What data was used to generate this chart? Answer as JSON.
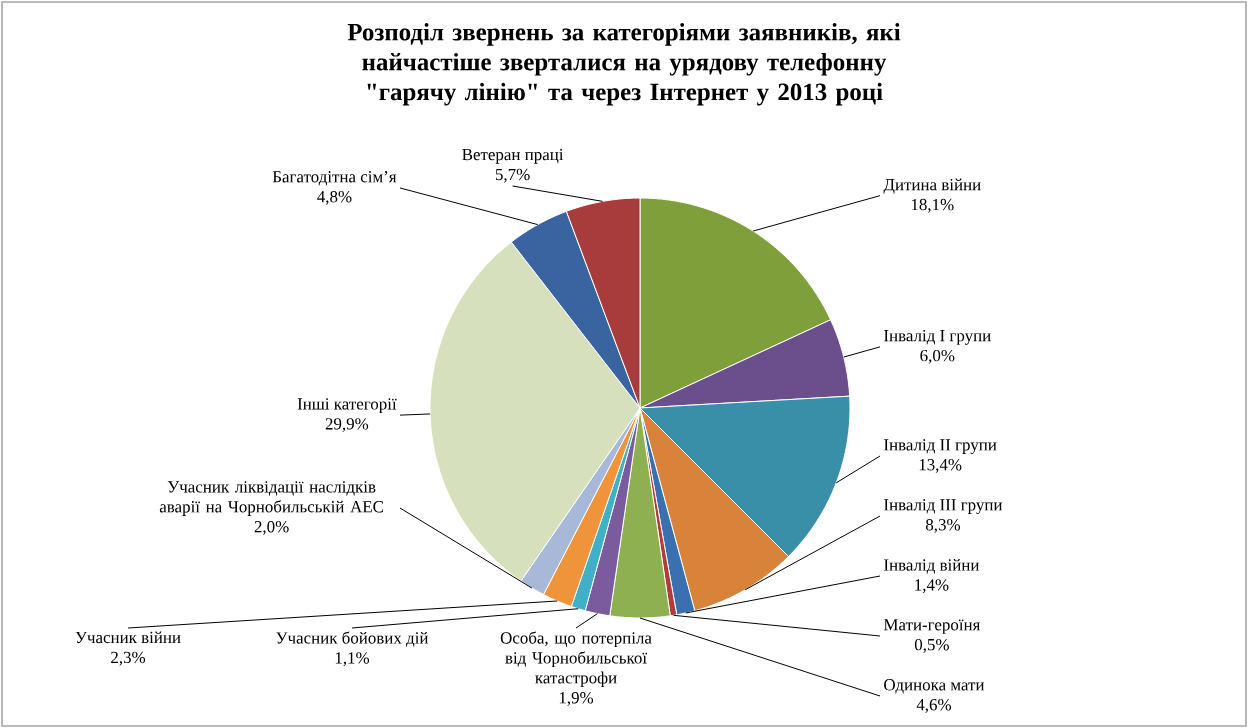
{
  "chart_data": {
    "type": "pie",
    "title": "Розподіл звернень за категоріями заявників, які найчастіше зверталися на урядову телефонну \"гарячу лінію\" та через Інтернет у 2013 році",
    "categories": [
      "Дитина війни",
      "Інвалід І групи",
      "Інвалід ІІ групи",
      "Інвалід ІІІ групи",
      "Інвалід війни",
      "Мати-героїня",
      "Одинока мати",
      "Особа, що потерпіла від Чорнобильської катастрофи",
      "Учасник бойових дій",
      "Учасник війни",
      "Учасник ліквідації наслідків аварії на Чорнобильській АЕС",
      "Інші категорії",
      "Багатодітна сім’я",
      "Ветеран праці"
    ],
    "values": [
      18.1,
      6.0,
      13.4,
      8.3,
      1.4,
      0.5,
      4.6,
      1.9,
      1.1,
      2.3,
      2.0,
      29.9,
      4.8,
      5.7
    ],
    "value_labels": [
      "18,1%",
      "6,0%",
      "13,4%",
      "8,3%",
      "1,4%",
      "0,5%",
      "4,6%",
      "1,9%",
      "1,1%",
      "2,3%",
      "2,0%",
      "29,9%",
      "4,8%",
      "5,7%"
    ],
    "colors": [
      "#7f9f3a",
      "#6a4f8c",
      "#3a8fa8",
      "#d8823a",
      "#3a6fb0",
      "#b03c3c",
      "#8fb050",
      "#7a5c9e",
      "#3fb0c8",
      "#f0943c",
      "#a8b8d8",
      "#d6e0bc",
      "#3a64a0",
      "#a83c3c"
    ]
  }
}
